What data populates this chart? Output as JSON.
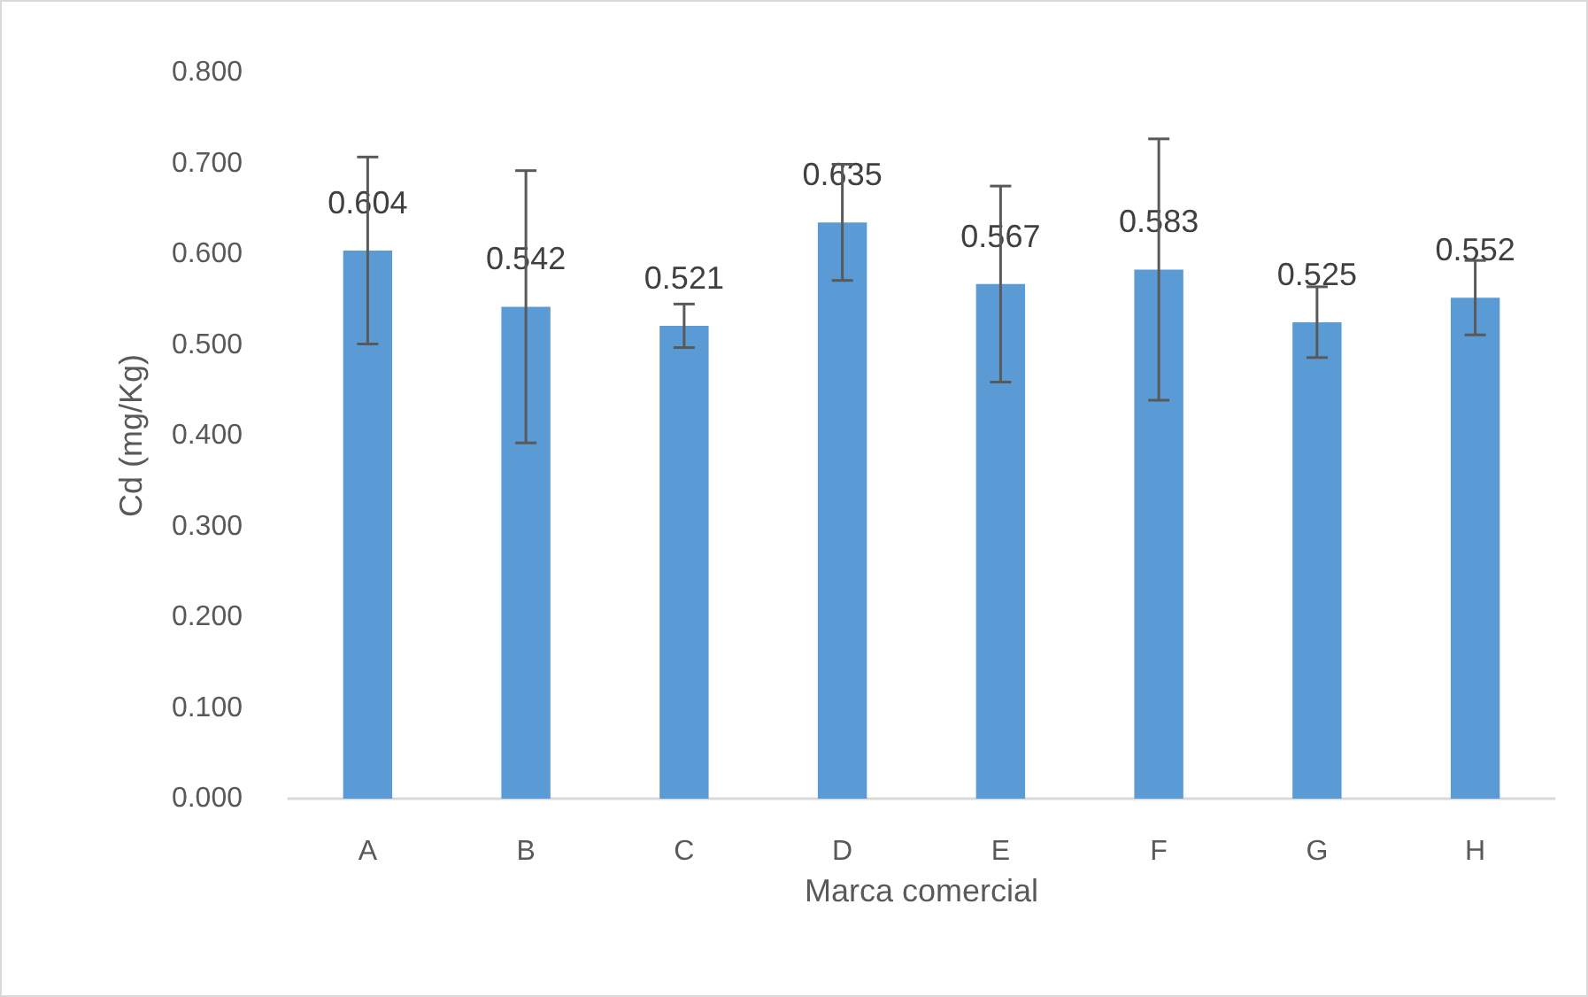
{
  "chart_data": {
    "type": "bar",
    "xlabel": "Marca comercial",
    "ylabel": "Cd (mg/Kg)",
    "categories": [
      "A",
      "B",
      "C",
      "D",
      "E",
      "F",
      "G",
      "H"
    ],
    "values": [
      0.604,
      0.542,
      0.521,
      0.635,
      0.567,
      0.583,
      0.525,
      0.552
    ],
    "errors": [
      0.103,
      0.15,
      0.024,
      0.064,
      0.108,
      0.144,
      0.039,
      0.041
    ],
    "color": "#5b9bd5",
    "value_labels": [
      "0.604",
      "0.542",
      "0.521",
      "0.635",
      "0.567",
      "0.583",
      "0.525",
      "0.552"
    ],
    "ylim": [
      0,
      0.8
    ],
    "yticks": [
      {
        "value": 0,
        "label": "0.000"
      },
      {
        "value": 0.1,
        "label": "0.100"
      },
      {
        "value": 0.2,
        "label": "0.200"
      },
      {
        "value": 0.3,
        "label": "0.300"
      },
      {
        "value": 0.4,
        "label": "0.400"
      },
      {
        "value": 0.5,
        "label": "0.500"
      },
      {
        "value": 0.6,
        "label": "0.600"
      },
      {
        "value": 0.7,
        "label": "0.700"
      },
      {
        "value": 0.8,
        "label": "0.800"
      }
    ]
  }
}
